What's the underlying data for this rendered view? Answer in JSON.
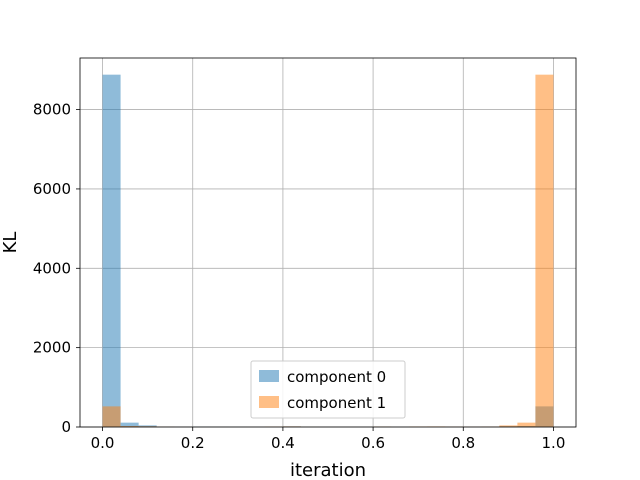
{
  "chart_data": {
    "type": "bar",
    "title": "",
    "xlabel": "iteration",
    "ylabel": "KL",
    "xlim": [
      -0.05,
      1.05
    ],
    "ylim": [
      0,
      9300
    ],
    "xticks": [
      0.0,
      0.2,
      0.4,
      0.6,
      0.8,
      1.0
    ],
    "xtick_labels": [
      "0.0",
      "0.2",
      "0.4",
      "0.6",
      "0.8",
      "1.0"
    ],
    "yticks": [
      0,
      2000,
      4000,
      6000,
      8000
    ],
    "ytick_labels": [
      "0",
      "2000",
      "4000",
      "6000",
      "8000"
    ],
    "grid": true,
    "legend_position": "lower-center",
    "bin_edges": [
      0.0,
      0.04,
      0.08,
      0.12,
      0.16,
      0.2,
      0.24,
      0.28,
      0.32,
      0.36,
      0.4,
      0.44,
      0.48,
      0.52,
      0.56,
      0.6,
      0.64,
      0.68,
      0.72,
      0.76,
      0.8,
      0.84,
      0.88,
      0.92,
      0.96,
      1.0
    ],
    "series": [
      {
        "name": "component 0",
        "color": "#1f77b4",
        "alpha": 0.5,
        "values": [
          8880,
          110,
          40,
          12,
          6,
          8,
          5,
          4,
          2,
          3,
          15,
          3,
          2,
          2,
          2,
          10,
          2,
          2,
          2,
          2,
          3,
          8,
          18,
          25,
          520
        ]
      },
      {
        "name": "component 1",
        "color": "#ff7f0e",
        "alpha": 0.5,
        "values": [
          520,
          25,
          18,
          8,
          3,
          2,
          2,
          2,
          2,
          10,
          15,
          3,
          2,
          2,
          2,
          12,
          2,
          12,
          14,
          8,
          6,
          12,
          40,
          110,
          8880
        ]
      }
    ]
  }
}
